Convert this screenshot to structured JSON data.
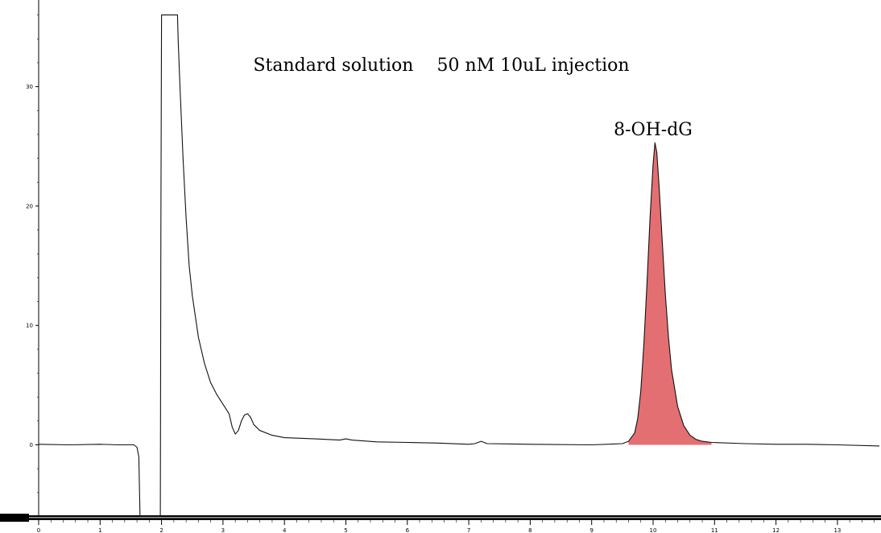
{
  "chart_data": {
    "type": "line",
    "title": "Standard solution　 50 nM 10uL injection",
    "xlabel": "",
    "ylabel": "",
    "xlim": [
      0,
      13.7
    ],
    "ylim": [
      -6,
      36
    ],
    "x_ticks": [
      "0",
      "1",
      "2",
      "3",
      "4",
      "5",
      "6",
      "7",
      "8",
      "9",
      "10",
      "11",
      "12",
      "13"
    ],
    "y_ticks": [
      "0",
      "10",
      "20",
      "30"
    ],
    "grid": false,
    "legend": "none",
    "peak_label": "8-OH-dG",
    "peak_fill_color": "#e36f72",
    "peak_fill_range": [
      9.55,
      10.95
    ],
    "series": [
      {
        "values": [
          [
            0,
            0.05
          ],
          [
            0.5,
            0.0
          ],
          [
            1.0,
            0.05
          ],
          [
            1.3,
            0.0
          ],
          [
            1.55,
            0.0
          ],
          [
            1.6,
            -0.2
          ],
          [
            1.63,
            -1.0
          ],
          [
            1.65,
            -6
          ],
          [
            1.66,
            -6
          ],
          [
            1.98,
            -6
          ],
          [
            1.99,
            18.5
          ],
          [
            2.0,
            36
          ],
          [
            2.26,
            36
          ],
          [
            2.27,
            34
          ],
          [
            2.3,
            30
          ],
          [
            2.35,
            24
          ],
          [
            2.4,
            19
          ],
          [
            2.45,
            15
          ],
          [
            2.5,
            12.5
          ],
          [
            2.6,
            9.0
          ],
          [
            2.7,
            6.8
          ],
          [
            2.8,
            5.2
          ],
          [
            2.9,
            4.2
          ],
          [
            3.0,
            3.4
          ],
          [
            3.1,
            2.6
          ],
          [
            3.15,
            1.5
          ],
          [
            3.2,
            0.9
          ],
          [
            3.25,
            1.2
          ],
          [
            3.3,
            2.0
          ],
          [
            3.35,
            2.5
          ],
          [
            3.4,
            2.6
          ],
          [
            3.45,
            2.3
          ],
          [
            3.5,
            1.7
          ],
          [
            3.6,
            1.2
          ],
          [
            3.8,
            0.8
          ],
          [
            4.0,
            0.6
          ],
          [
            4.5,
            0.5
          ],
          [
            4.9,
            0.4
          ],
          [
            5.0,
            0.5
          ],
          [
            5.1,
            0.4
          ],
          [
            5.5,
            0.25
          ],
          [
            6.0,
            0.2
          ],
          [
            6.5,
            0.15
          ],
          [
            7.0,
            0.05
          ],
          [
            7.1,
            0.1
          ],
          [
            7.2,
            0.3
          ],
          [
            7.3,
            0.1
          ],
          [
            8.0,
            0.05
          ],
          [
            9.0,
            0.0
          ],
          [
            9.5,
            0.1
          ],
          [
            9.6,
            0.3
          ],
          [
            9.7,
            1.0
          ],
          [
            9.75,
            2.2
          ],
          [
            9.8,
            4.5
          ],
          [
            9.85,
            8.5
          ],
          [
            9.9,
            13.5
          ],
          [
            9.95,
            19.0
          ],
          [
            10.0,
            23.5
          ],
          [
            10.03,
            25.3
          ],
          [
            10.06,
            24.5
          ],
          [
            10.1,
            21.5
          ],
          [
            10.15,
            17.0
          ],
          [
            10.2,
            12.5
          ],
          [
            10.25,
            9.0
          ],
          [
            10.3,
            6.3
          ],
          [
            10.4,
            3.2
          ],
          [
            10.5,
            1.6
          ],
          [
            10.6,
            0.8
          ],
          [
            10.7,
            0.45
          ],
          [
            10.8,
            0.3
          ],
          [
            10.95,
            0.2
          ],
          [
            11.5,
            0.1
          ],
          [
            12.0,
            0.05
          ],
          [
            12.5,
            0.05
          ],
          [
            13.0,
            0.0
          ],
          [
            13.7,
            -0.1
          ]
        ]
      }
    ]
  }
}
